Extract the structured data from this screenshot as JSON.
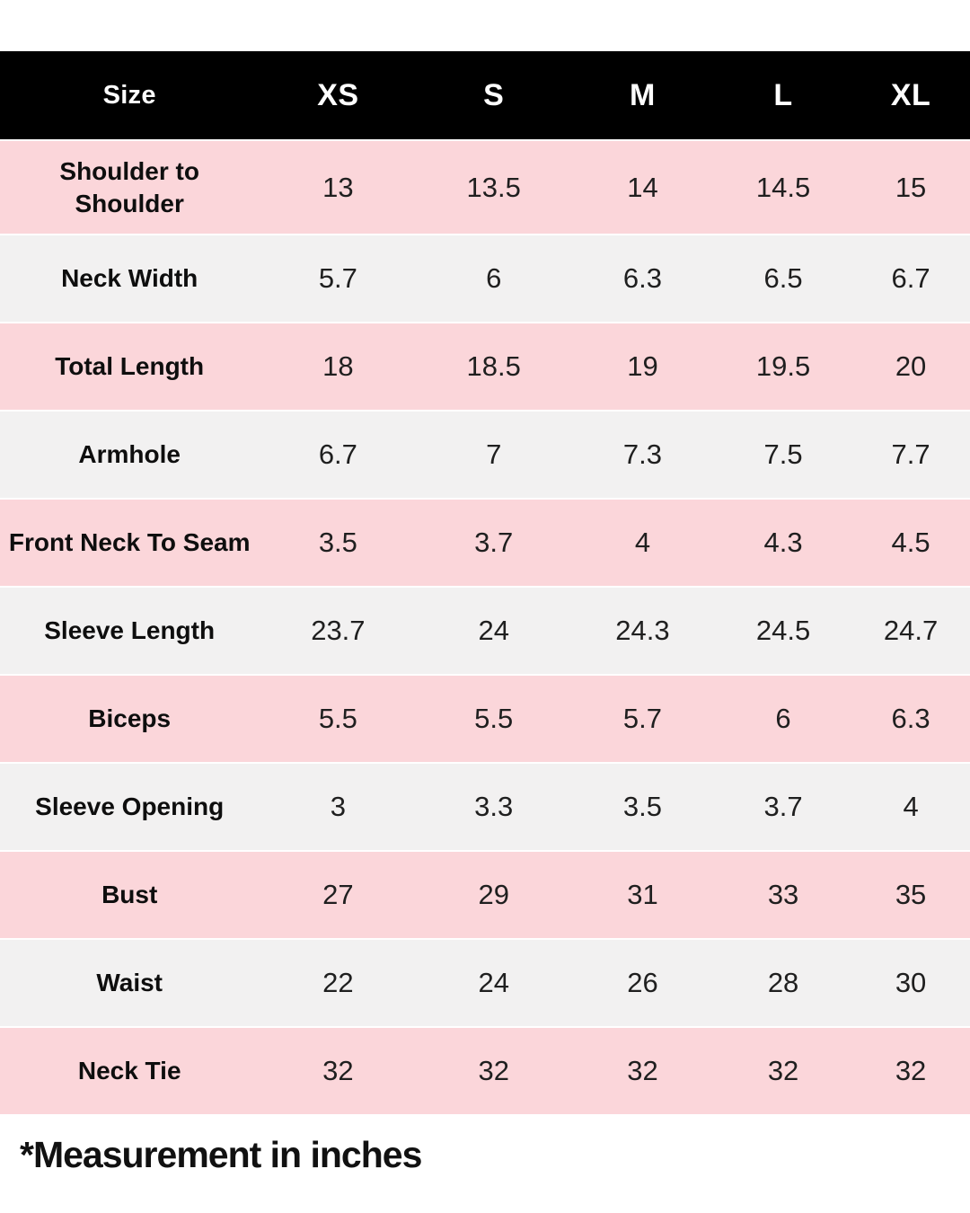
{
  "chart_data": {
    "type": "table",
    "columns": [
      "Size",
      "XS",
      "S",
      "M",
      "L",
      "XL"
    ],
    "rows": [
      {
        "label": "Shoulder to Shoulder",
        "values": [
          "13",
          "13.5",
          "14",
          "14.5",
          "15"
        ]
      },
      {
        "label": "Neck Width",
        "values": [
          "5.7",
          "6",
          "6.3",
          "6.5",
          "6.7"
        ]
      },
      {
        "label": "Total Length",
        "values": [
          "18",
          "18.5",
          "19",
          "19.5",
          "20"
        ]
      },
      {
        "label": "Armhole",
        "values": [
          "6.7",
          "7",
          "7.3",
          "7.5",
          "7.7"
        ]
      },
      {
        "label": "Front Neck To Seam",
        "values": [
          "3.5",
          "3.7",
          "4",
          "4.3",
          "4.5"
        ]
      },
      {
        "label": "Sleeve Length",
        "values": [
          "23.7",
          "24",
          "24.3",
          "24.5",
          "24.7"
        ]
      },
      {
        "label": "Biceps",
        "values": [
          "5.5",
          "5.5",
          "5.7",
          "6",
          "6.3"
        ]
      },
      {
        "label": "Sleeve Opening",
        "values": [
          "3",
          "3.3",
          "3.5",
          "3.7",
          "4"
        ]
      },
      {
        "label": "Bust",
        "values": [
          "27",
          "29",
          "31",
          "33",
          "35"
        ]
      },
      {
        "label": "Waist",
        "values": [
          "22",
          "24",
          "26",
          "28",
          "30"
        ]
      },
      {
        "label": "Neck Tie",
        "values": [
          "32",
          "32",
          "32",
          "32",
          "32"
        ]
      }
    ],
    "note": "*Measurement in inches",
    "layout": {
      "header_position": "top",
      "row_striping": [
        "pink",
        "gray"
      ],
      "grid": "off"
    }
  },
  "colors": {
    "header_bg": "#000000",
    "header_text": "#FFFFFF",
    "row_pink": "#FBD6DA",
    "row_gray": "#F2F1F1",
    "label_text": "#0E0E0E",
    "value_text": "#1F1F1F",
    "page_bg": "#FFFFFF"
  }
}
